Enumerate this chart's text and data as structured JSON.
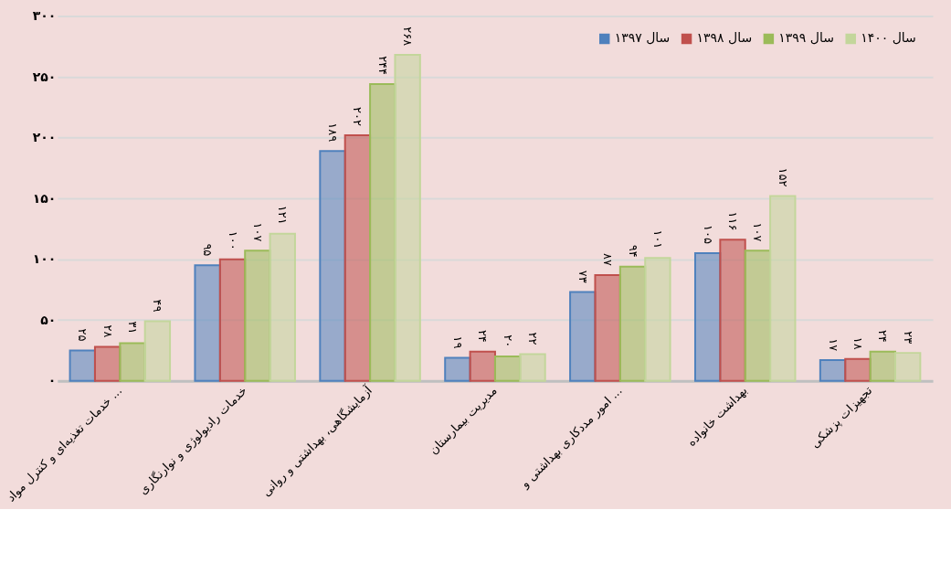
{
  "chart_data": {
    "type": "bar",
    "categories": [
      "خدمات تغذیه‌ای و کنترل مواد ...",
      "خدمات رادیولوژی و نوارنگاری",
      "آزمایشگاهی، بهداشتی و روانی",
      "مدیریت بیمارستان",
      "امور مددکاری بهداشتی و ...",
      "بهداشت خانواده",
      "تجهیزات پزشکی"
    ],
    "series": [
      {
        "name": "سال ۱۳۹۷",
        "color": "#4f81bd",
        "values": [
          25,
          95,
          189,
          19,
          73,
          105,
          17
        ],
        "value_labels": [
          "۲۵",
          "۹۵",
          "۱۸۹",
          "۱۹",
          "۷۳",
          "۱۰۵",
          "۱۷"
        ]
      },
      {
        "name": "سال ۱۳۹۸",
        "color": "#c0504d",
        "values": [
          28,
          100,
          202,
          24,
          87,
          116,
          18
        ],
        "value_labels": [
          "۲۸",
          "۱۰۰",
          "۲۰۲",
          "۲۴",
          "۸۷",
          "۱۱۶",
          "۱۸"
        ]
      },
      {
        "name": "سال ۱۳۹۹",
        "color": "#9bbb59",
        "values": [
          31,
          107,
          244,
          20,
          94,
          107,
          24
        ],
        "value_labels": [
          "۳۱",
          "۱۰۷",
          "۲۴۴",
          "۲۰",
          "۹۴",
          "۱۰۷",
          "۲۴"
        ]
      },
      {
        "name": "سال ۱۴۰۰",
        "color": "#c3d69b",
        "values": [
          49,
          121,
          268,
          22,
          101,
          152,
          23
        ],
        "value_labels": [
          "۴۹",
          "۱۲۱",
          "۲۶۸",
          "۲۲",
          "۱۰۱",
          "۱۵۲",
          "۲۳"
        ]
      }
    ],
    "ylim": [
      0,
      300
    ],
    "yticks": [
      {
        "value": 0,
        "label": "۰"
      },
      {
        "value": 50,
        "label": "۵۰"
      },
      {
        "value": 100,
        "label": "۱۰۰"
      },
      {
        "value": 150,
        "label": "۱۵۰"
      },
      {
        "value": 200,
        "label": "۲۰۰"
      },
      {
        "value": 250,
        "label": "۲۵۰"
      },
      {
        "value": 300,
        "label": "۳۰۰"
      }
    ],
    "grid": true,
    "legend": "top right"
  }
}
